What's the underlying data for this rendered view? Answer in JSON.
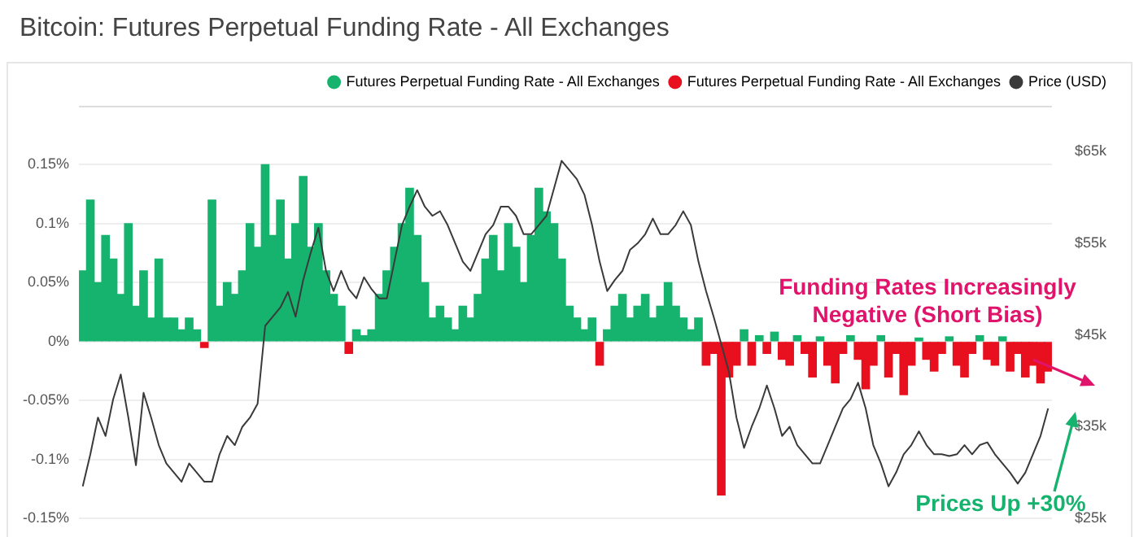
{
  "chart_data": {
    "type": "bar",
    "title": "Bitcoin: Futures Perpetual Funding Rate - All Exchanges",
    "categories": [
      null,
      null,
      null,
      null,
      null,
      null,
      null,
      null,
      null,
      null,
      null,
      null,
      null,
      null,
      null,
      null,
      null,
      null,
      null,
      null,
      null,
      null,
      null,
      null,
      null,
      null,
      null,
      null,
      null,
      null,
      null,
      null,
      null,
      null,
      null,
      null,
      null,
      null,
      null,
      null,
      null,
      null,
      null,
      null,
      null,
      null,
      null,
      null,
      null,
      null,
      null,
      null,
      null,
      null,
      null,
      null,
      null,
      null,
      null,
      null,
      null,
      null,
      null,
      null,
      null,
      null,
      null,
      null,
      null,
      null,
      null,
      null,
      null,
      null,
      null,
      null,
      null,
      null,
      null,
      null,
      null,
      null,
      null,
      null,
      null,
      null,
      null,
      null,
      null,
      null,
      null,
      null,
      null,
      null,
      null,
      null,
      null,
      null,
      null,
      null,
      null,
      null,
      null,
      null,
      null,
      null,
      null,
      null,
      null,
      null,
      null,
      null,
      null,
      null,
      null,
      null,
      null,
      null,
      null,
      null,
      null,
      null,
      null,
      null,
      null,
      null,
      null,
      null
    ],
    "stacked": true,
    "series": [
      {
        "name": "Futures Perpetual Funding Rate - All Exchanges",
        "color": "#16b36e",
        "values": [
          0.06,
          0.12,
          0.05,
          0.09,
          0.07,
          0.04,
          0.1,
          0.03,
          0.06,
          0.02,
          0.07,
          0.02,
          0.02,
          0.01,
          0.02,
          0.01,
          null,
          0.12,
          0.03,
          0.05,
          0.04,
          0.06,
          0.1,
          0.08,
          0.15,
          0.09,
          0.12,
          0.07,
          0.1,
          0.14,
          0.08,
          0.1,
          0.06,
          0.04,
          0.03,
          null,
          0.01,
          0.005,
          0.01,
          0.04,
          0.06,
          0.08,
          0.1,
          0.13,
          0.09,
          0.05,
          0.02,
          0.03,
          0.02,
          0.01,
          0.03,
          0.02,
          0.04,
          0.07,
          0.09,
          0.06,
          0.1,
          0.08,
          0.05,
          0.09,
          0.13,
          0.11,
          0.1,
          0.07,
          0.03,
          0.02,
          0.01,
          0.02,
          null,
          0.01,
          0.03,
          0.04,
          0.02,
          0.03,
          0.04,
          0.02,
          0.03,
          0.05,
          0.03,
          0.02,
          0.01,
          0.02,
          null,
          null,
          null,
          null,
          null,
          0.01,
          null,
          0.005,
          null,
          0.008,
          null,
          null,
          0.005,
          null,
          null,
          0.004,
          null,
          null,
          null,
          0.005,
          null,
          null,
          null,
          0.005,
          null,
          null,
          null,
          null,
          0.003,
          null,
          null,
          null,
          0.004,
          null,
          null,
          null,
          0.005,
          null,
          null,
          0.004,
          null,
          null,
          null,
          null,
          null,
          null
        ]
      },
      {
        "name": "Futures Perpetual Funding Rate - All Exchanges",
        "color": "#e8101e",
        "values": [
          null,
          null,
          null,
          null,
          null,
          null,
          null,
          null,
          null,
          null,
          null,
          null,
          null,
          null,
          null,
          null,
          -0.005,
          null,
          null,
          null,
          null,
          null,
          null,
          null,
          null,
          null,
          null,
          null,
          null,
          null,
          null,
          null,
          null,
          null,
          null,
          -0.01,
          null,
          null,
          null,
          null,
          null,
          null,
          null,
          null,
          null,
          null,
          null,
          null,
          null,
          null,
          null,
          null,
          null,
          null,
          null,
          null,
          null,
          null,
          null,
          null,
          null,
          null,
          null,
          null,
          null,
          null,
          null,
          null,
          -0.02,
          null,
          null,
          null,
          null,
          null,
          null,
          null,
          null,
          null,
          null,
          null,
          null,
          null,
          -0.02,
          -0.01,
          -0.13,
          -0.03,
          -0.02,
          null,
          -0.02,
          null,
          -0.01,
          null,
          -0.015,
          -0.02,
          null,
          -0.01,
          -0.03,
          null,
          -0.02,
          -0.035,
          -0.01,
          null,
          -0.015,
          -0.04,
          -0.02,
          null,
          -0.03,
          -0.01,
          -0.045,
          -0.02,
          null,
          -0.015,
          -0.025,
          -0.01,
          null,
          -0.02,
          -0.03,
          -0.01,
          null,
          -0.015,
          -0.02,
          null,
          -0.025,
          -0.01,
          -0.03,
          -0.02,
          -0.035,
          -0.025
        ]
      },
      {
        "name": "Price (USD)",
        "type": "line",
        "axis": "y2",
        "color": "#3a3a3a",
        "values": [
          28.5,
          32,
          36,
          34,
          38,
          40.7,
          36,
          30.8,
          38.7,
          36,
          33,
          31,
          30,
          29,
          31,
          30,
          29,
          29,
          32,
          34,
          33,
          35,
          36,
          37.5,
          46,
          47,
          48,
          49.7,
          47,
          51,
          54,
          56.7,
          52,
          49.8,
          52,
          50,
          49,
          51.3,
          50,
          49,
          49,
          53,
          57,
          59,
          60.8,
          59,
          58,
          58.5,
          57,
          55,
          53,
          52,
          54,
          56,
          57,
          59,
          59,
          58,
          56,
          56,
          57,
          58,
          61,
          64,
          63,
          62,
          60.3,
          57,
          53,
          49.8,
          51,
          52,
          54.3,
          55,
          56,
          57.7,
          56,
          56,
          57,
          58.5,
          57,
          53,
          49.8,
          47,
          44,
          41,
          36,
          32.7,
          35,
          37,
          39.5,
          37,
          34,
          35,
          33,
          32,
          31,
          31,
          33,
          35,
          37,
          38,
          39.8,
          37,
          33,
          31,
          28.5,
          30,
          32,
          33,
          34.5,
          33,
          32,
          32,
          31.8,
          32,
          33,
          32,
          33,
          33.3,
          32,
          31,
          30,
          28.8,
          30,
          32,
          34,
          37
        ]
      }
    ],
    "ylim": [
      -0.15,
      0.2
    ],
    "yticks": [
      {
        "value": -0.15,
        "label": "-0.15%"
      },
      {
        "value": -0.1,
        "label": "-0.1%"
      },
      {
        "value": -0.05,
        "label": "-0.05%"
      },
      {
        "value": 0,
        "label": "0%"
      },
      {
        "value": 0.05,
        "label": "0.05%"
      },
      {
        "value": 0.1,
        "label": "0.1%"
      },
      {
        "value": 0.15,
        "label": "0.15%"
      }
    ],
    "y2lim": [
      25,
      70
    ],
    "y2ticks": [
      {
        "value": 25,
        "label": "$25k"
      },
      {
        "value": 35,
        "label": "$35k"
      },
      {
        "value": 45,
        "label": "$45k"
      },
      {
        "value": 55,
        "label": "$55k"
      },
      {
        "value": 65,
        "label": "$65k"
      }
    ],
    "grid": "y",
    "legend": "top right",
    "marker": "none",
    "line_style": "solid",
    "annotations": [
      "Funding Rates Increasingly Negative (Short Bias)",
      "Prices Up +30%"
    ]
  }
}
